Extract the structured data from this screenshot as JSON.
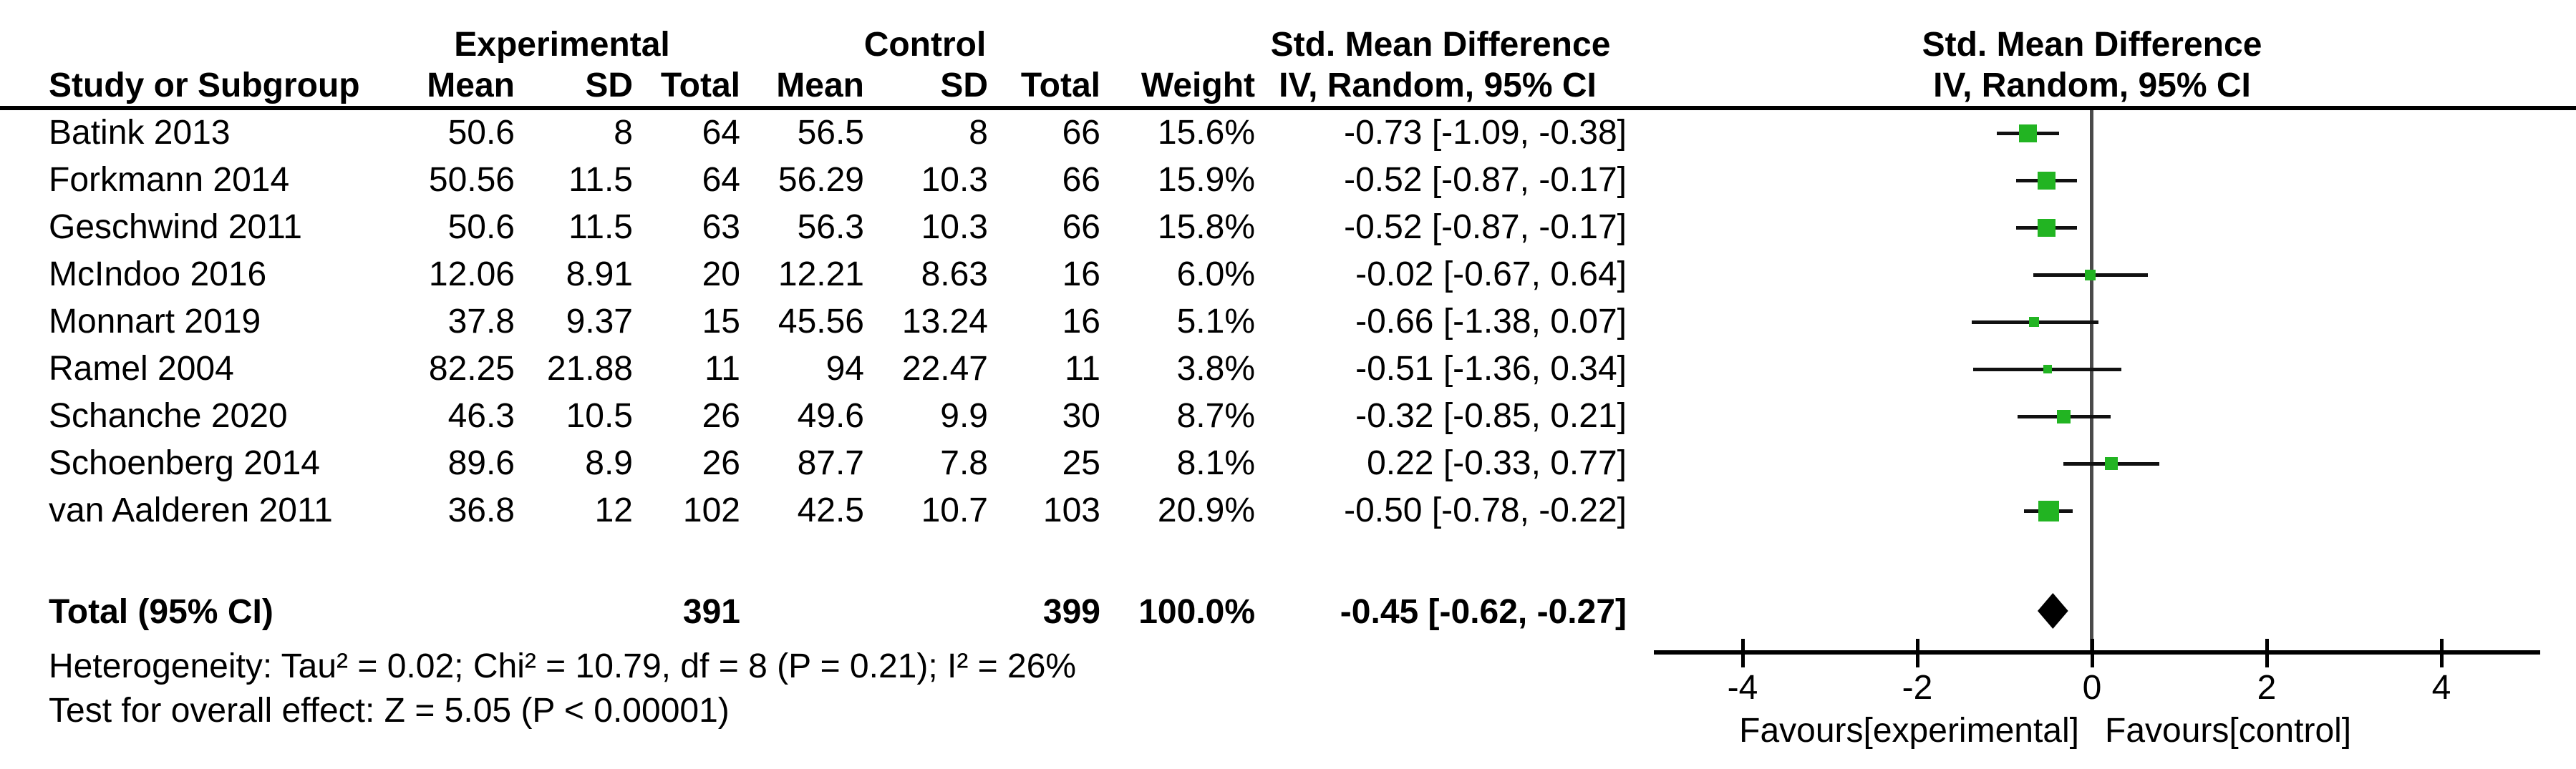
{
  "table": {
    "group_headers": {
      "experimental": "Experimental",
      "control": "Control",
      "smd_col": "Std. Mean Difference",
      "smd_plot": "Std. Mean Difference"
    },
    "col_headers": {
      "study": "Study or Subgroup",
      "mean_e": "Mean",
      "sd_e": "SD",
      "total_e": "Total",
      "mean_c": "Mean",
      "sd_c": "SD",
      "total_c": "Total",
      "weight": "Weight",
      "iv": "IV, Random, 95% CI",
      "iv_plot": "IV, Random, 95% CI"
    },
    "rows": [
      {
        "study": "Batink 2013",
        "mean_e": "50.6",
        "sd_e": "8",
        "total_e": "64",
        "mean_c": "56.5",
        "sd_c": "8",
        "total_c": "66",
        "weight": "15.6%",
        "ci": "-0.73 [-1.09, -0.38]"
      },
      {
        "study": "Forkmann 2014",
        "mean_e": "50.56",
        "sd_e": "11.5",
        "total_e": "64",
        "mean_c": "56.29",
        "sd_c": "10.3",
        "total_c": "66",
        "weight": "15.9%",
        "ci": "-0.52 [-0.87, -0.17]"
      },
      {
        "study": "Geschwind 2011",
        "mean_e": "50.6",
        "sd_e": "11.5",
        "total_e": "63",
        "mean_c": "56.3",
        "sd_c": "10.3",
        "total_c": "66",
        "weight": "15.8%",
        "ci": "-0.52 [-0.87, -0.17]"
      },
      {
        "study": "McIndoo 2016",
        "mean_e": "12.06",
        "sd_e": "8.91",
        "total_e": "20",
        "mean_c": "12.21",
        "sd_c": "8.63",
        "total_c": "16",
        "weight": "6.0%",
        "ci": "-0.02 [-0.67, 0.64]"
      },
      {
        "study": "Monnart 2019",
        "mean_e": "37.8",
        "sd_e": "9.37",
        "total_e": "15",
        "mean_c": "45.56",
        "sd_c": "13.24",
        "total_c": "16",
        "weight": "5.1%",
        "ci": "-0.66 [-1.38, 0.07]"
      },
      {
        "study": "Ramel 2004",
        "mean_e": "82.25",
        "sd_e": "21.88",
        "total_e": "11",
        "mean_c": "94",
        "sd_c": "22.47",
        "total_c": "11",
        "weight": "3.8%",
        "ci": "-0.51 [-1.36, 0.34]"
      },
      {
        "study": "Schanche 2020",
        "mean_e": "46.3",
        "sd_e": "10.5",
        "total_e": "26",
        "mean_c": "49.6",
        "sd_c": "9.9",
        "total_c": "30",
        "weight": "8.7%",
        "ci": "-0.32 [-0.85, 0.21]"
      },
      {
        "study": "Schoenberg 2014",
        "mean_e": "89.6",
        "sd_e": "8.9",
        "total_e": "26",
        "mean_c": "87.7",
        "sd_c": "7.8",
        "total_c": "25",
        "weight": "8.1%",
        "ci": "0.22 [-0.33, 0.77]"
      },
      {
        "study": "van Aalderen 2011",
        "mean_e": "36.8",
        "sd_e": "12",
        "total_e": "102",
        "mean_c": "42.5",
        "sd_c": "10.7",
        "total_c": "103",
        "weight": "20.9%",
        "ci": "-0.50 [-0.78, -0.22]"
      }
    ],
    "total_row": {
      "label": "Total (95% CI)",
      "total_e": "391",
      "total_c": "399",
      "weight": "100.0%",
      "ci": "-0.45 [-0.62, -0.27]"
    },
    "heterogeneity": "Heterogeneity: Tau² = 0.02; Chi² = 10.79, df = 8 (P = 0.21); I² = 26%",
    "overall_effect": "Test for overall effect: Z = 5.05 (P < 0.00001)"
  },
  "chart_data": {
    "type": "forest",
    "title": "Std. Mean Difference",
    "effect_measure": "IV, Random, 95% CI",
    "studies": [
      {
        "label": "Batink 2013",
        "smd": -0.73,
        "lo": -1.09,
        "hi": -0.38,
        "weight": 15.6
      },
      {
        "label": "Forkmann 2014",
        "smd": -0.52,
        "lo": -0.87,
        "hi": -0.17,
        "weight": 15.9
      },
      {
        "label": "Geschwind 2011",
        "smd": -0.52,
        "lo": -0.87,
        "hi": -0.17,
        "weight": 15.8
      },
      {
        "label": "McIndoo 2016",
        "smd": -0.02,
        "lo": -0.67,
        "hi": 0.64,
        "weight": 6.0
      },
      {
        "label": "Monnart 2019",
        "smd": -0.66,
        "lo": -1.38,
        "hi": 0.07,
        "weight": 5.1
      },
      {
        "label": "Ramel 2004",
        "smd": -0.51,
        "lo": -1.36,
        "hi": 0.34,
        "weight": 3.8
      },
      {
        "label": "Schanche 2020",
        "smd": -0.32,
        "lo": -0.85,
        "hi": 0.21,
        "weight": 8.7
      },
      {
        "label": "Schoenberg 2014",
        "smd": 0.22,
        "lo": -0.33,
        "hi": 0.77,
        "weight": 8.1
      },
      {
        "label": "van Aalderen 2011",
        "smd": -0.5,
        "lo": -0.78,
        "hi": -0.22,
        "weight": 20.9
      }
    ],
    "total": {
      "label": "Total (95% CI)",
      "smd": -0.45,
      "lo": -0.62,
      "hi": -0.27,
      "weight": 100.0
    },
    "axis": {
      "ticks": [
        -4,
        -2,
        0,
        2,
        4
      ],
      "xmin": -5,
      "xmax": 5.1,
      "grid": false
    },
    "xlabel_left": "Favours[experimental]",
    "xlabel_right": "Favours[control]",
    "totals": {
      "experimental_n": 391,
      "control_n": 399
    }
  },
  "colors": {
    "marker_square": "#22b422",
    "diamond": "#000000",
    "ci_line": "#111111",
    "zero_line": "#4a4a4a",
    "axis": "#000000",
    "text": "#000000",
    "background": "#ffffff"
  }
}
